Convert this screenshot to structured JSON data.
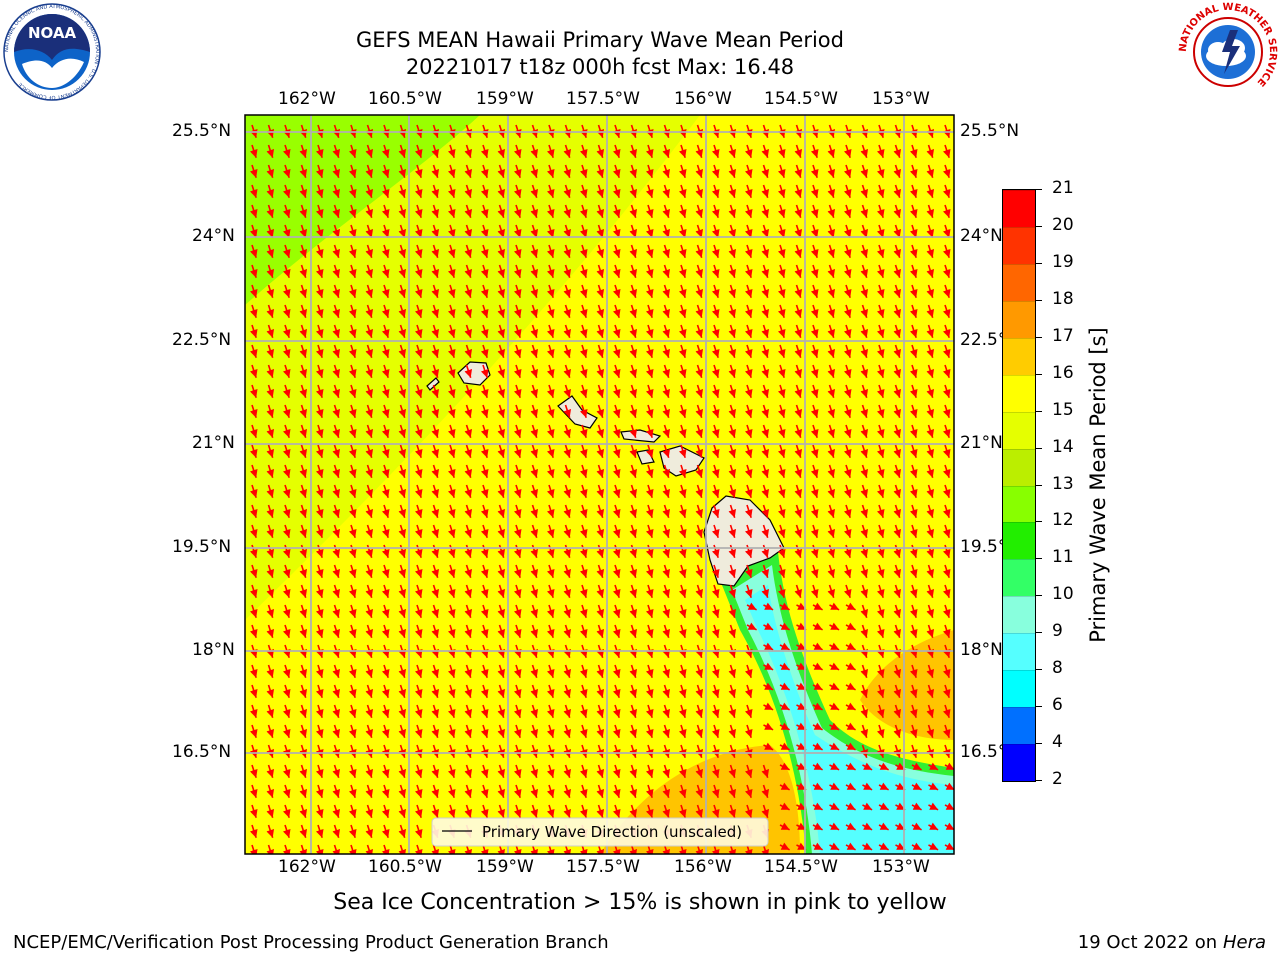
{
  "header": {
    "title_line1": "GEFS MEAN Hawaii Primary Wave Mean Period",
    "title_line2": "20221017 t18z 000h fcst   Max: 16.48"
  },
  "logos": {
    "left": "NOAA",
    "left_ring_text": "NATIONAL OCEANIC AND ATMOSPHERIC ADMINISTRATION · U.S. DEPARTMENT OF COMMERCE",
    "right_ring_text": "NATIONAL WEATHER SERVICE"
  },
  "map": {
    "lon_labels": [
      "162°W",
      "160.5°W",
      "159°W",
      "157.5°W",
      "156°W",
      "154.5°W",
      "153°W"
    ],
    "lat_labels": [
      "25.5°N",
      "24°N",
      "22.5°N",
      "21°N",
      "19.5°N",
      "18°N",
      "16.5°N"
    ],
    "legend_label": "Primary Wave Direction (unscaled)",
    "colors": {
      "field_main": "#ffff00",
      "field_green": "#99ff00",
      "field_orange": "#ffb000",
      "arrow": "#ff0000",
      "land": "#efecdc",
      "grid": "#b0b0b0"
    }
  },
  "colorbar": {
    "label": "Primary Wave Mean Period [s]",
    "ticks": [
      "2",
      "4",
      "6",
      "8",
      "9",
      "10",
      "11",
      "12",
      "13",
      "14",
      "15",
      "16",
      "17",
      "18",
      "19",
      "20",
      "21"
    ],
    "colors": [
      "#0000ff",
      "#0070ff",
      "#00ffff",
      "#55ffff",
      "#88ffdd",
      "#33ff66",
      "#22ee00",
      "#88ff00",
      "#bbee00",
      "#e5ff00",
      "#ffff00",
      "#ffcc00",
      "#ff9900",
      "#ff6600",
      "#ff3300",
      "#ff0000"
    ]
  },
  "footer": {
    "note": "Sea Ice Concentration > 15% is shown in pink to yellow",
    "credit": "NCEP/EMC/Verification Post Processing Product Generation Branch",
    "date": "19 Oct 2022 on ",
    "machine": "Hera"
  }
}
